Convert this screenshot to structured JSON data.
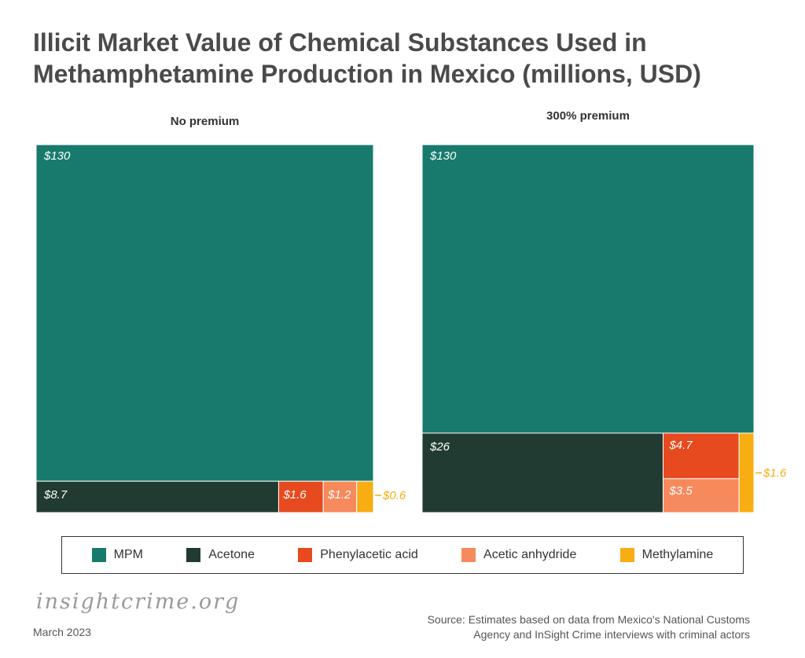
{
  "title": "Illicit Market Value of Chemical Substances Used in Methamphetamine Production in Mexico (millions, USD)",
  "colors": {
    "MPM": "#177a6c",
    "Acetone": "#213a32",
    "Phenylacetic acid": "#e64a1e",
    "Acetic anhydride": "#f78a5c",
    "Methylamine": "#f8ad12"
  },
  "chart_data": [
    {
      "type": "treemap",
      "title": "No premium",
      "items": [
        {
          "name": "MPM",
          "value": 130,
          "label": "$130"
        },
        {
          "name": "Acetone",
          "value": 8.7,
          "label": "$8.7"
        },
        {
          "name": "Phenylacetic acid",
          "value": 1.6,
          "label": "$1.6"
        },
        {
          "name": "Acetic anhydride",
          "value": 1.2,
          "label": "$1.2"
        },
        {
          "name": "Methylamine",
          "value": 0.6,
          "label": "$0.6"
        }
      ]
    },
    {
      "type": "treemap",
      "title": "300% premium",
      "items": [
        {
          "name": "MPM",
          "value": 130,
          "label": "$130"
        },
        {
          "name": "Acetone",
          "value": 26,
          "label": "$26"
        },
        {
          "name": "Phenylacetic acid",
          "value": 4.7,
          "label": "$4.7"
        },
        {
          "name": "Acetic anhydride",
          "value": 3.5,
          "label": "$3.5"
        },
        {
          "name": "Methylamine",
          "value": 1.6,
          "label": "$1.6"
        }
      ]
    }
  ],
  "legend": [
    "MPM",
    "Acetone",
    "Phenylacetic acid",
    "Acetic anhydride",
    "Methylamine"
  ],
  "footer": {
    "logo": "insightcrime.org",
    "date": "March 2023",
    "source_line1": "Source: Estimates based on data from Mexico's National Customs",
    "source_line2": "Agency  and InSight Crime interviews with criminal actors"
  }
}
